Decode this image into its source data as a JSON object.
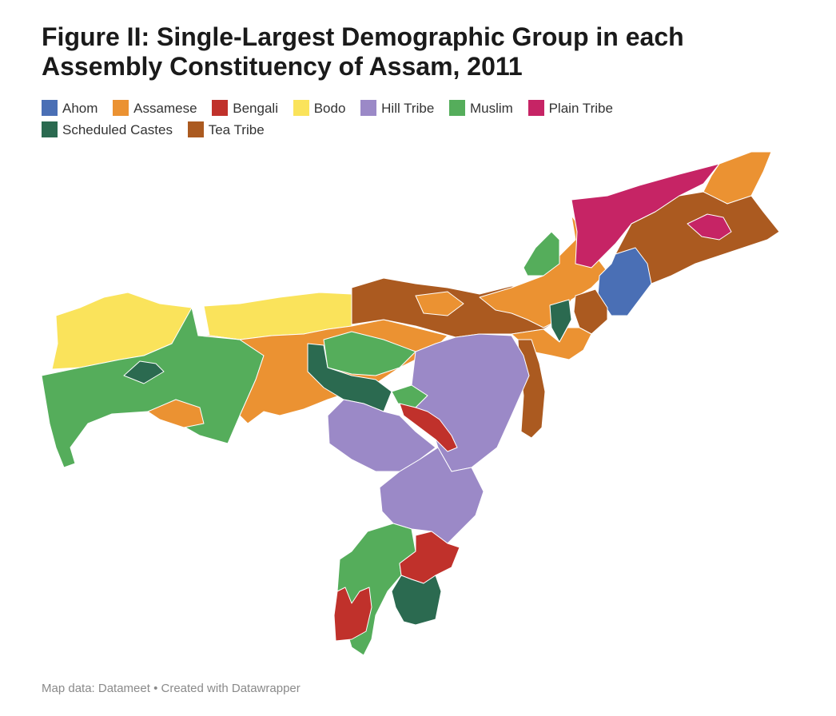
{
  "title": "Figure II: Single-Largest Demographic Group in each Assembly Constituency of Assam, 2011",
  "legend": [
    {
      "label": "Ahom",
      "color": "#4a6fb5"
    },
    {
      "label": "Assamese",
      "color": "#eb9232"
    },
    {
      "label": "Bengali",
      "color": "#c0312b"
    },
    {
      "label": "Bodo",
      "color": "#fae35b"
    },
    {
      "label": "Hill Tribe",
      "color": "#9b89c7"
    },
    {
      "label": "Muslim",
      "color": "#55ad5b"
    },
    {
      "label": "Plain Tribe",
      "color": "#c62465"
    },
    {
      "label": "Scheduled Castes",
      "color": "#2b6a50"
    },
    {
      "label": "Tea Tribe",
      "color": "#ab5a20"
    }
  ],
  "footer": "Map data: Datameet • Created with Datawrapper"
}
